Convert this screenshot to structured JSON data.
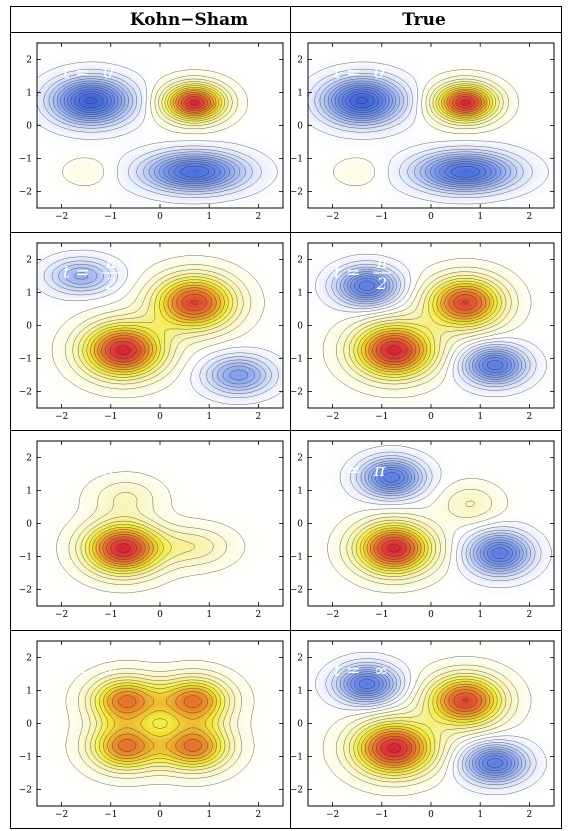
{
  "headers": [
    "Kohn−Sham",
    "True"
  ],
  "colors": {
    "low": "#3a5fd9",
    "mid": "#ffffff",
    "yellow": "#f2ea3a",
    "orange": "#e9882a",
    "high": "#d8203a",
    "contour": "#222222",
    "frame": "#000000"
  },
  "chart_data": [
    {
      "type": "heatmap",
      "column": "Kohn−Sham",
      "label_prefix": "t =",
      "label_value": "0",
      "xlim": [
        -2.5,
        2.5
      ],
      "ylim": [
        -2.5,
        2.5
      ],
      "xticks": [
        -2,
        -1,
        0,
        1,
        2
      ],
      "yticks": [
        -2,
        -1,
        0,
        1,
        2
      ],
      "peaks": [
        {
          "x": -1.4,
          "y": 0.75,
          "a": -1.0,
          "sx": 0.75,
          "sy": 0.65
        },
        {
          "x": 0.7,
          "y": 0.7,
          "a": 1.0,
          "sx": 0.6,
          "sy": 0.55
        },
        {
          "x": 0.7,
          "y": -1.4,
          "a": -0.9,
          "sx": 0.95,
          "sy": 0.55
        },
        {
          "x": -1.5,
          "y": -1.4,
          "a": 0.1,
          "sx": 0.5,
          "sy": 0.45
        }
      ]
    },
    {
      "type": "heatmap",
      "column": "True",
      "label_prefix": "t =",
      "label_value": "0",
      "xlim": [
        -2.5,
        2.5
      ],
      "ylim": [
        -2.5,
        2.5
      ],
      "xticks": [
        -2,
        -1,
        0,
        1,
        2
      ],
      "yticks": [
        -2,
        -1,
        0,
        1,
        2
      ],
      "peaks": [
        {
          "x": -1.4,
          "y": 0.75,
          "a": -1.0,
          "sx": 0.75,
          "sy": 0.65
        },
        {
          "x": 0.7,
          "y": 0.7,
          "a": 1.0,
          "sx": 0.6,
          "sy": 0.55
        },
        {
          "x": 0.7,
          "y": -1.4,
          "a": -0.9,
          "sx": 0.95,
          "sy": 0.55
        },
        {
          "x": -1.5,
          "y": -1.4,
          "a": 0.1,
          "sx": 0.5,
          "sy": 0.45
        }
      ]
    },
    {
      "type": "heatmap",
      "column": "Kohn−Sham",
      "label_prefix": "t =",
      "label_frac": [
        "π",
        "2"
      ],
      "xlim": [
        -2.5,
        2.5
      ],
      "ylim": [
        -2.5,
        2.5
      ],
      "xticks": [
        -2,
        -1,
        0,
        1,
        2
      ],
      "yticks": [
        -2,
        -1,
        0,
        1,
        2
      ],
      "peaks": [
        {
          "x": -0.75,
          "y": -0.75,
          "a": 1.0,
          "sx": 0.8,
          "sy": 0.8
        },
        {
          "x": 0.7,
          "y": 0.7,
          "a": 0.9,
          "sx": 0.8,
          "sy": 0.8
        },
        {
          "x": 1.6,
          "y": -1.5,
          "a": -0.55,
          "sx": 0.65,
          "sy": 0.55
        },
        {
          "x": -1.6,
          "y": 1.5,
          "a": -0.45,
          "sx": 0.65,
          "sy": 0.5
        }
      ]
    },
    {
      "type": "heatmap",
      "column": "True",
      "label_prefix": "t =",
      "label_frac": [
        "π",
        "2"
      ],
      "xlim": [
        -2.5,
        2.5
      ],
      "ylim": [
        -2.5,
        2.5
      ],
      "xticks": [
        -2,
        -1,
        0,
        1,
        2
      ],
      "yticks": [
        -2,
        -1,
        0,
        1,
        2
      ],
      "peaks": [
        {
          "x": -0.75,
          "y": -0.75,
          "a": 1.0,
          "sx": 0.8,
          "sy": 0.8
        },
        {
          "x": 0.7,
          "y": 0.7,
          "a": 0.9,
          "sx": 0.75,
          "sy": 0.75
        },
        {
          "x": 1.3,
          "y": -1.2,
          "a": -0.8,
          "sx": 0.6,
          "sy": 0.55
        },
        {
          "x": -1.3,
          "y": 1.2,
          "a": -0.8,
          "sx": 0.6,
          "sy": 0.55
        }
      ]
    },
    {
      "type": "heatmap",
      "column": "Kohn−Sham",
      "label_prefix": "t =",
      "label_value": "π",
      "xlim": [
        -2.5,
        2.5
      ],
      "ylim": [
        -2.5,
        2.5
      ],
      "xticks": [
        -2,
        -1,
        0,
        1,
        2
      ],
      "yticks": [
        -2,
        -1,
        0,
        1,
        2
      ],
      "peaks": [
        {
          "x": -0.75,
          "y": -0.75,
          "a": 1.0,
          "sx": 0.75,
          "sy": 0.75
        },
        {
          "x": 0.7,
          "y": -0.7,
          "a": 0.25,
          "sx": 0.75,
          "sy": 0.6
        },
        {
          "x": -0.7,
          "y": 0.8,
          "a": 0.2,
          "sx": 0.7,
          "sy": 0.6
        }
      ]
    },
    {
      "type": "heatmap",
      "column": "True",
      "label_prefix": "t =",
      "label_value": "π",
      "xlim": [
        -2.5,
        2.5
      ],
      "ylim": [
        -2.5,
        2.5
      ],
      "xticks": [
        -2,
        -1,
        0,
        1,
        2
      ],
      "yticks": [
        -2,
        -1,
        0,
        1,
        2
      ],
      "peaks": [
        {
          "x": -0.75,
          "y": -0.75,
          "a": 1.0,
          "sx": 0.75,
          "sy": 0.75
        },
        {
          "x": 1.4,
          "y": -0.9,
          "a": -0.8,
          "sx": 0.6,
          "sy": 0.6
        },
        {
          "x": -0.8,
          "y": 1.4,
          "a": -0.8,
          "sx": 0.6,
          "sy": 0.55
        },
        {
          "x": 0.8,
          "y": 0.6,
          "a": 0.2,
          "sx": 0.6,
          "sy": 0.6
        }
      ]
    },
    {
      "type": "heatmap",
      "column": "Kohn−Sham",
      "label_prefix": "t =",
      "label_value": "∞",
      "xlim": [
        -2.5,
        2.5
      ],
      "ylim": [
        -2.5,
        2.5
      ],
      "xticks": [
        -2,
        -1,
        0,
        1,
        2
      ],
      "yticks": [
        -2,
        -1,
        0,
        1,
        2
      ],
      "peaks": [
        {
          "x": -0.7,
          "y": 0.7,
          "a": 0.75,
          "sx": 0.7,
          "sy": 0.7
        },
        {
          "x": 0.7,
          "y": 0.7,
          "a": 0.75,
          "sx": 0.7,
          "sy": 0.7
        },
        {
          "x": -0.7,
          "y": -0.7,
          "a": 0.75,
          "sx": 0.7,
          "sy": 0.7
        },
        {
          "x": 0.7,
          "y": -0.7,
          "a": 0.75,
          "sx": 0.7,
          "sy": 0.7
        }
      ]
    },
    {
      "type": "heatmap",
      "column": "True",
      "label_prefix": "t =",
      "label_value": "∞",
      "xlim": [
        -2.5,
        2.5
      ],
      "ylim": [
        -2.5,
        2.5
      ],
      "xticks": [
        -2,
        -1,
        0,
        1,
        2
      ],
      "yticks": [
        -2,
        -1,
        0,
        1,
        2
      ],
      "peaks": [
        {
          "x": -0.75,
          "y": -0.75,
          "a": 1.0,
          "sx": 0.8,
          "sy": 0.8
        },
        {
          "x": 0.7,
          "y": 0.7,
          "a": 0.9,
          "sx": 0.75,
          "sy": 0.75
        },
        {
          "x": 1.3,
          "y": -1.2,
          "a": -0.8,
          "sx": 0.6,
          "sy": 0.55
        },
        {
          "x": -1.3,
          "y": 1.2,
          "a": -0.8,
          "sx": 0.6,
          "sy": 0.55
        }
      ]
    }
  ]
}
